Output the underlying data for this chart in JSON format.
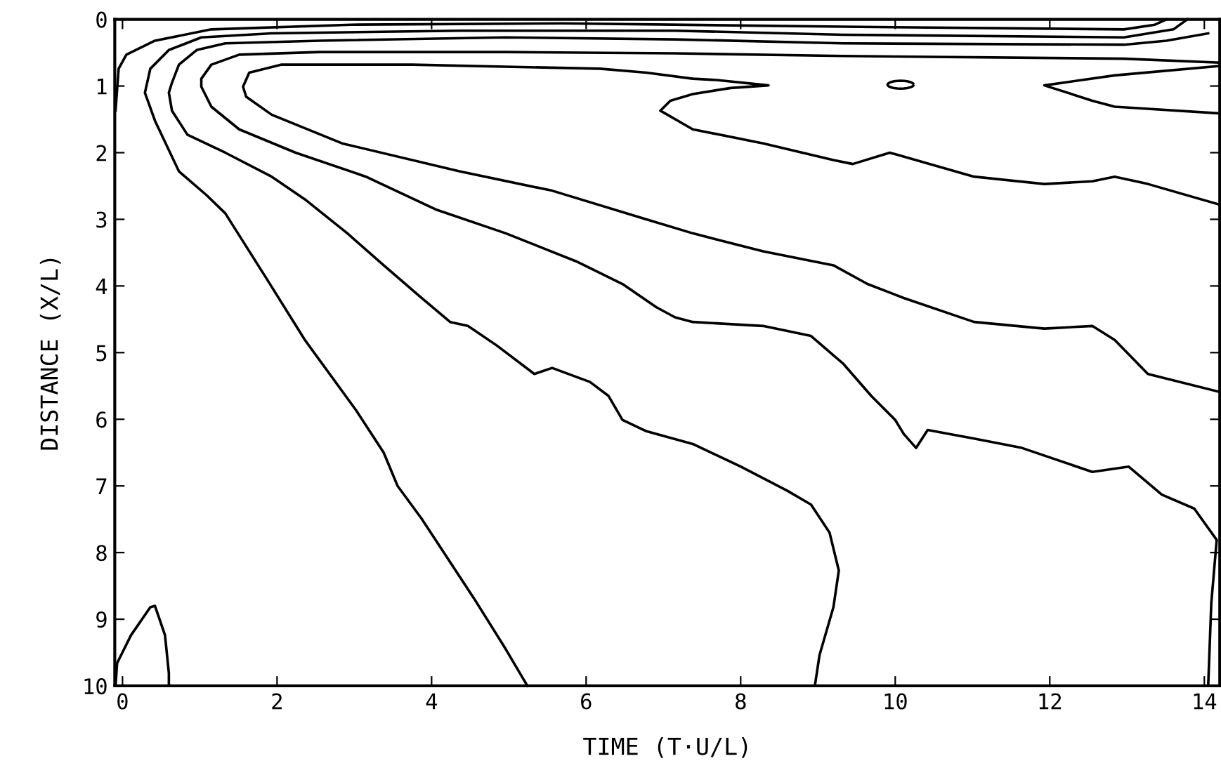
{
  "chart_data": {
    "type": "line",
    "xlabel": "TIME (T·U/L)",
    "ylabel": "DISTANCE (X/L)",
    "xlim": [
      -0.1,
      14.2
    ],
    "xticks": [
      0,
      2,
      4,
      6,
      8,
      10,
      12,
      14
    ],
    "ylim": [
      10,
      0
    ],
    "yticks": [
      0,
      1,
      2,
      3,
      4,
      5,
      6,
      7,
      8,
      9,
      10
    ],
    "grid": false,
    "legend": false,
    "marker": "none",
    "line_style": "solid",
    "series": [
      {
        "color": "#000000",
        "x": [
          -0.09,
          -0.05,
          0.05,
          0.42,
          1.15,
          2.96,
          5.69,
          9.33,
          12.96,
          13.36,
          13.51
        ],
        "values": [
          1.37,
          0.74,
          0.53,
          0.32,
          0.15,
          0.08,
          0.06,
          0.11,
          0.15,
          0.08,
          0.0
        ]
      },
      {
        "color": "#000000",
        "x": [
          13.78,
          13.6,
          12.96,
          9.33,
          7.15,
          4.36,
          1.93,
          1.02,
          0.6,
          0.36,
          0.29,
          0.42,
          0.73,
          1.09,
          1.33,
          1.87,
          2.36,
          3.02,
          3.38,
          3.56,
          3.87,
          4.55,
          4.96,
          5.24
        ],
        "values": [
          0.0,
          0.15,
          0.27,
          0.23,
          0.17,
          0.17,
          0.21,
          0.27,
          0.46,
          0.74,
          1.1,
          1.52,
          2.28,
          2.64,
          2.91,
          3.9,
          4.81,
          5.86,
          6.5,
          7.0,
          7.49,
          8.69,
          9.45,
          10.0
        ]
      },
      {
        "color": "#000000",
        "x": [
          14.05,
          13.51,
          12.96,
          9.33,
          7.15,
          4.96,
          2.55,
          1.33,
          0.96,
          0.73,
          0.64,
          0.6,
          0.64,
          0.84,
          1.33,
          1.93,
          2.36,
          2.91,
          3.38,
          3.87,
          4.24,
          4.47,
          4.84,
          5.33,
          5.56,
          6.05,
          6.29,
          6.47,
          6.78,
          7.38,
          8.0,
          8.6,
          8.91,
          9.15,
          9.27,
          9.2,
          9.02,
          8.96
        ],
        "values": [
          0.21,
          0.32,
          0.38,
          0.36,
          0.3,
          0.27,
          0.32,
          0.36,
          0.46,
          0.68,
          0.95,
          1.1,
          1.37,
          1.73,
          2.0,
          2.36,
          2.7,
          3.21,
          3.69,
          4.18,
          4.54,
          4.6,
          4.89,
          5.32,
          5.23,
          5.44,
          5.65,
          6.01,
          6.18,
          6.37,
          6.71,
          7.07,
          7.28,
          7.7,
          8.27,
          8.82,
          9.54,
          10.0
        ]
      },
      {
        "color": "#000000",
        "x": [
          14.2,
          12.96,
          9.33,
          7.15,
          4.96,
          2.55,
          1.51,
          1.15,
          1.02,
          1.02,
          1.15,
          1.51,
          2.24,
          3.15,
          4.05,
          4.96,
          5.87,
          6.47,
          6.91,
          7.15,
          7.38,
          8.29,
          8.91,
          9.33,
          9.69,
          10.0,
          10.11,
          10.27,
          10.42,
          11.02,
          11.64,
          12.55,
          13.02,
          13.45,
          13.87,
          14.16,
          14.09,
          14.05
        ],
        "values": [
          0.65,
          0.59,
          0.55,
          0.51,
          0.49,
          0.49,
          0.53,
          0.68,
          0.89,
          1.01,
          1.31,
          1.65,
          2.0,
          2.36,
          2.85,
          3.21,
          3.63,
          3.97,
          4.32,
          4.47,
          4.54,
          4.6,
          4.75,
          5.17,
          5.65,
          6.01,
          6.22,
          6.43,
          6.16,
          6.29,
          6.43,
          6.79,
          6.71,
          7.13,
          7.34,
          7.81,
          8.76,
          10.0
        ]
      },
      {
        "color": "#000000",
        "x": [
          14.2,
          13.27,
          12.84,
          12.55,
          11.93,
          11.02,
          9.93,
          9.45,
          9.2,
          8.29,
          7.38,
          6.96,
          7.09,
          7.38,
          7.87,
          8.36,
          7.69,
          7.38,
          6.78,
          6.18,
          3.75,
          2.05,
          1.64,
          1.56,
          1.6,
          1.93,
          2.84,
          4.36,
          5.56,
          6.78,
          7.38,
          8.29,
          9.2,
          9.64,
          10.11,
          11.02,
          11.93,
          12.55,
          12.84,
          13.27,
          14.2
        ],
        "values": [
          2.78,
          2.47,
          2.36,
          2.43,
          2.47,
          2.36,
          2.0,
          2.17,
          2.11,
          1.86,
          1.65,
          1.37,
          1.22,
          1.12,
          1.03,
          0.99,
          0.91,
          0.89,
          0.8,
          0.74,
          0.68,
          0.68,
          0.8,
          1.01,
          1.16,
          1.43,
          1.86,
          2.28,
          2.57,
          3.0,
          3.21,
          3.48,
          3.69,
          3.97,
          4.18,
          4.54,
          4.64,
          4.6,
          4.81,
          5.32,
          5.59
        ]
      },
      {
        "type": "scatter",
        "color": "#000000",
        "x": [
          10.07
        ],
        "values": [
          0.98
        ]
      },
      {
        "color": "#000000",
        "x": [
          14.2,
          12.84,
          11.93,
          12.55,
          12.84,
          14.2
        ],
        "values": [
          0.7,
          0.84,
          0.99,
          1.22,
          1.31,
          1.41
        ]
      },
      {
        "color": "#000000",
        "x": [
          -0.09,
          -0.07,
          0.11,
          0.36,
          0.42,
          0.55,
          0.6,
          0.6
        ],
        "values": [
          10.0,
          9.66,
          9.24,
          8.82,
          8.8,
          9.24,
          9.81,
          10.0
        ]
      }
    ]
  }
}
